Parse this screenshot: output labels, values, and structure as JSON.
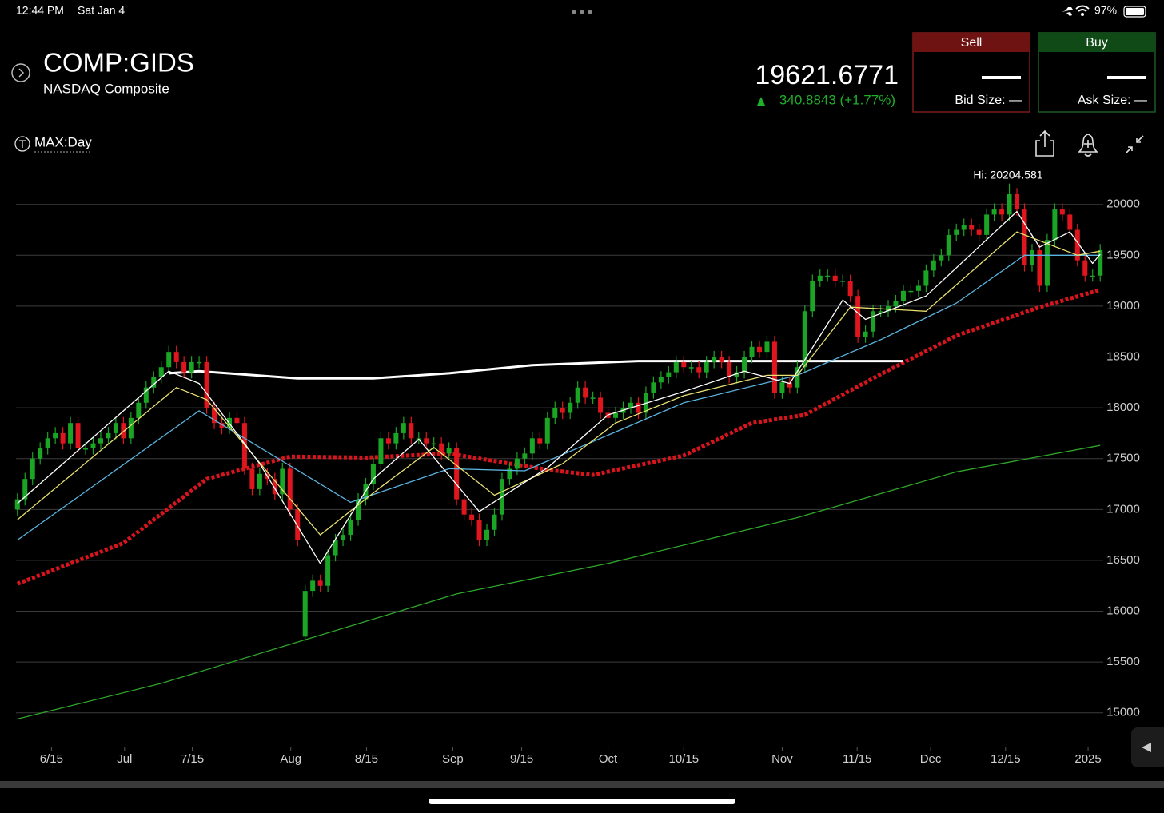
{
  "status_bar": {
    "time": "12:44 PM",
    "date": "Sat Jan 4",
    "battery": "97%"
  },
  "header": {
    "symbol": "COMP:GIDS",
    "name": "NASDAQ Composite",
    "price": "19621.6771",
    "change": "340.8843 (+1.77%)"
  },
  "trade": {
    "sell": {
      "label": "Sell",
      "size": "Bid Size: —"
    },
    "buy": {
      "label": "Buy",
      "size": "Ask Size: —"
    }
  },
  "toolbar": {
    "range": "MAX:Day"
  },
  "chart_data": {
    "type": "candlestick",
    "annotation": "Hi: 20204.581",
    "up_color": "#1ba524",
    "down_color": "#e0161e",
    "grid": true,
    "xlim": [
      -2.3,
      143.4
    ],
    "xticks": [
      {
        "value": 4.5,
        "label": "6/15"
      },
      {
        "value": 14.15,
        "label": "Jul"
      },
      {
        "value": 23.1,
        "label": "7/15"
      },
      {
        "value": 36.1,
        "label": "Aug"
      },
      {
        "value": 46.1,
        "label": "8/15"
      },
      {
        "value": 57.5,
        "label": "Sep"
      },
      {
        "value": 66.6,
        "label": "9/15"
      },
      {
        "value": 78,
        "label": "Oct"
      },
      {
        "value": 88,
        "label": "10/15"
      },
      {
        "value": 101,
        "label": "Nov"
      },
      {
        "value": 110.9,
        "label": "11/15"
      },
      {
        "value": 120.6,
        "label": "Dec"
      },
      {
        "value": 130.5,
        "label": "12/15"
      },
      {
        "value": 141.4,
        "label": "2025"
      }
    ],
    "ylim": [
      14660,
      20320
    ],
    "yticks": [
      15000,
      15500,
      16000,
      16500,
      17000,
      17500,
      18000,
      18500,
      19000,
      19500,
      20000
    ],
    "open": [
      17000,
      17100,
      17300,
      17500,
      17600,
      17700,
      17750,
      17650,
      17850,
      17600,
      17600,
      17650,
      17700,
      17750,
      17850,
      17700,
      17900,
      18050,
      18200,
      18300,
      18400,
      18550,
      18450,
      18350,
      18450,
      18450,
      18000,
      17850,
      17800,
      17900,
      17850,
      17400,
      17200,
      17350,
      17300,
      17150,
      17400,
      17000,
      15750,
      16200,
      16300,
      16250,
      16550,
      16700,
      16750,
      16900,
      17100,
      17250,
      17450,
      17700,
      17650,
      17750,
      17850,
      17700,
      17700,
      17650,
      17650,
      17550,
      17600,
      17100,
      16950,
      16900,
      16700,
      16800,
      16950,
      17300,
      17400,
      17500,
      17550,
      17700,
      17650,
      17900,
      18000,
      17950,
      18050,
      18200,
      18100,
      18100,
      17950,
      17900,
      17950,
      18000,
      18050,
      17950,
      18150,
      18250,
      18300,
      18350,
      18450,
      18400,
      18400,
      18350,
      18450,
      18500,
      18450,
      18300,
      18350,
      18500,
      18600,
      18550,
      18650,
      18150,
      18250,
      18200,
      18400,
      18950,
      19250,
      19300,
      19300,
      19250,
      19250,
      19100,
      18700,
      18750,
      18950,
      18950,
      19000,
      19050,
      19150,
      19150,
      19200,
      19350,
      19450,
      19500,
      19700,
      19750,
      19800,
      19750,
      19700,
      19900,
      19950,
      19900,
      20100,
      19950,
      19400,
      19550,
      19200,
      19650,
      19950,
      19900,
      19750,
      19450,
      19300,
      19300
    ],
    "high": [
      17160,
      17360,
      17560,
      17660,
      17760,
      17810,
      17810,
      17910,
      17910,
      17660,
      17710,
      17760,
      17810,
      17910,
      17910,
      17960,
      18110,
      18260,
      18360,
      18460,
      18610,
      18610,
      18510,
      18510,
      18510,
      18510,
      18060,
      17910,
      17960,
      17960,
      17910,
      17460,
      17410,
      17410,
      17360,
      17460,
      17460,
      17060,
      16260,
      16360,
      16360,
      16610,
      16760,
      16810,
      16960,
      17160,
      17310,
      17510,
      17760,
      17760,
      17810,
      17910,
      17910,
      17760,
      17760,
      17710,
      17710,
      17660,
      17660,
      17160,
      17010,
      16960,
      16860,
      17010,
      17360,
      17460,
      17560,
      17610,
      17760,
      17760,
      17960,
      18060,
      18060,
      18110,
      18260,
      18260,
      18160,
      18160,
      18010,
      18010,
      18060,
      18110,
      18110,
      18210,
      18310,
      18360,
      18410,
      18510,
      18510,
      18460,
      18460,
      18510,
      18560,
      18560,
      18510,
      18410,
      18560,
      18660,
      18660,
      18710,
      18710,
      18310,
      18310,
      18460,
      19010,
      19310,
      19360,
      19360,
      19360,
      19310,
      19310,
      19160,
      18810,
      19010,
      19010,
      19060,
      19110,
      19210,
      19210,
      19260,
      19410,
      19510,
      19560,
      19760,
      19810,
      19860,
      19860,
      19810,
      19960,
      20010,
      20010,
      20204.581,
      20160,
      20010,
      19610,
      19610,
      19710,
      20010,
      20010,
      19960,
      19810,
      19510,
      19360,
      19610
    ],
    "low": [
      16940,
      17040,
      17240,
      17440,
      17540,
      17640,
      17590,
      17590,
      17540,
      17540,
      17540,
      17590,
      17640,
      17690,
      17640,
      17640,
      17840,
      17990,
      18140,
      18240,
      18340,
      18390,
      18290,
      18290,
      18390,
      17940,
      17790,
      17740,
      17740,
      17790,
      17340,
      17140,
      17140,
      17240,
      17090,
      17090,
      16940,
      16640,
      15700,
      16140,
      16190,
      16190,
      16490,
      16640,
      16690,
      16840,
      17040,
      17190,
      17390,
      17590,
      17590,
      17690,
      17640,
      17640,
      17590,
      17590,
      17490,
      17490,
      17040,
      16890,
      16840,
      16640,
      16640,
      16740,
      16890,
      17240,
      17340,
      17440,
      17490,
      17590,
      17590,
      17840,
      17890,
      17890,
      17990,
      18040,
      18040,
      17890,
      17840,
      17840,
      17890,
      17940,
      17890,
      17890,
      18090,
      18190,
      18240,
      18290,
      18340,
      18340,
      18290,
      18290,
      18390,
      18390,
      18240,
      18240,
      18290,
      18440,
      18490,
      18490,
      18090,
      18090,
      18140,
      18140,
      18340,
      18890,
      19190,
      19240,
      19190,
      19190,
      19040,
      18640,
      18640,
      18690,
      18890,
      18890,
      18940,
      18990,
      19090,
      19090,
      19140,
      19290,
      19390,
      19440,
      19640,
      19690,
      19690,
      19640,
      19640,
      19840,
      19840,
      19840,
      19890,
      19340,
      19340,
      19140,
      19140,
      19590,
      19840,
      19690,
      19390,
      19240,
      19240,
      19240
    ],
    "close": [
      17100,
      17300,
      17500,
      17600,
      17700,
      17750,
      17650,
      17850,
      17600,
      17600,
      17650,
      17700,
      17750,
      17850,
      17700,
      17900,
      18050,
      18200,
      18300,
      18400,
      18550,
      18450,
      18350,
      18450,
      18450,
      18000,
      17850,
      17800,
      17900,
      17850,
      17400,
      17200,
      17350,
      17300,
      17150,
      17400,
      17000,
      16700,
      16200,
      16300,
      16250,
      16550,
      16700,
      16750,
      16900,
      17100,
      17250,
      17450,
      17700,
      17650,
      17750,
      17850,
      17700,
      17700,
      17650,
      17650,
      17550,
      17600,
      17100,
      16950,
      16900,
      16700,
      16800,
      16950,
      17300,
      17400,
      17500,
      17550,
      17700,
      17650,
      17900,
      18000,
      17950,
      18050,
      18200,
      18100,
      18100,
      17950,
      17900,
      17950,
      18000,
      18050,
      17950,
      18150,
      18250,
      18300,
      18350,
      18450,
      18400,
      18400,
      18350,
      18450,
      18500,
      18450,
      18300,
      18350,
      18500,
      18600,
      18550,
      18650,
      18150,
      18250,
      18200,
      18400,
      18950,
      19250,
      19300,
      19300,
      19250,
      19250,
      19100,
      18700,
      18750,
      18950,
      18950,
      19000,
      19050,
      19150,
      19150,
      19200,
      19350,
      19450,
      19500,
      19700,
      19750,
      19800,
      19750,
      19700,
      19900,
      19950,
      19900,
      20100,
      19950,
      19400,
      19550,
      19200,
      19650,
      19950,
      19900,
      19750,
      19450,
      19300,
      19300,
      19550
    ],
    "overlays": [
      {
        "color": "#2fa52a",
        "style": "solid",
        "x": [
          0,
          19,
          38,
          58,
          78,
          103,
          124,
          143
        ],
        "values": [
          14940,
          15290,
          15720,
          16170,
          16470,
          16920,
          17370,
          17630
        ]
      },
      {
        "color": "#d8141c",
        "style": "dotted",
        "x": [
          0,
          14,
          25,
          36,
          46,
          57,
          70,
          76,
          88,
          97,
          104,
          114,
          124,
          135,
          143
        ],
        "values": [
          16270,
          16670,
          17300,
          17520,
          17510,
          17550,
          17390,
          17340,
          17530,
          17850,
          17930,
          18330,
          18710,
          18990,
          19160
        ]
      },
      {
        "color": "#ffffff",
        "style": "drawing",
        "x": [
          20,
          24,
          37,
          47,
          57,
          68,
          82,
          117
        ],
        "values": [
          18340,
          18360,
          18290,
          18290,
          18340,
          18420,
          18460,
          18460
        ]
      },
      {
        "color": "#5ab4e0",
        "style": "solid",
        "x": [
          0,
          24,
          44,
          57,
          67,
          88,
          103,
          114,
          124,
          133,
          143
        ],
        "values": [
          16700,
          17970,
          17070,
          17400,
          17380,
          18050,
          18320,
          18670,
          19030,
          19500,
          19500
        ]
      },
      {
        "color": "#e8e070",
        "style": "solid",
        "x": [
          0,
          21,
          25,
          33,
          40,
          48,
          55,
          63,
          72,
          79,
          88,
          99,
          103,
          110,
          120,
          132,
          140,
          143
        ],
        "values": [
          16900,
          18200,
          18080,
          17370,
          16750,
          17220,
          17610,
          17140,
          17450,
          17850,
          18120,
          18320,
          18320,
          18990,
          18950,
          19730,
          19500,
          19540
        ]
      },
      {
        "color": "#ffffff",
        "style": "solid",
        "x": [
          0,
          20,
          24,
          32,
          40,
          47,
          53,
          61,
          70,
          78,
          88,
          96,
          102,
          109,
          112,
          120,
          132,
          135,
          139,
          142,
          143
        ],
        "values": [
          17060,
          18360,
          18240,
          17450,
          16470,
          17300,
          17690,
          16980,
          17410,
          17930,
          18160,
          18360,
          18240,
          19060,
          18870,
          19100,
          19930,
          19580,
          19730,
          19420,
          19510
        ]
      }
    ]
  }
}
